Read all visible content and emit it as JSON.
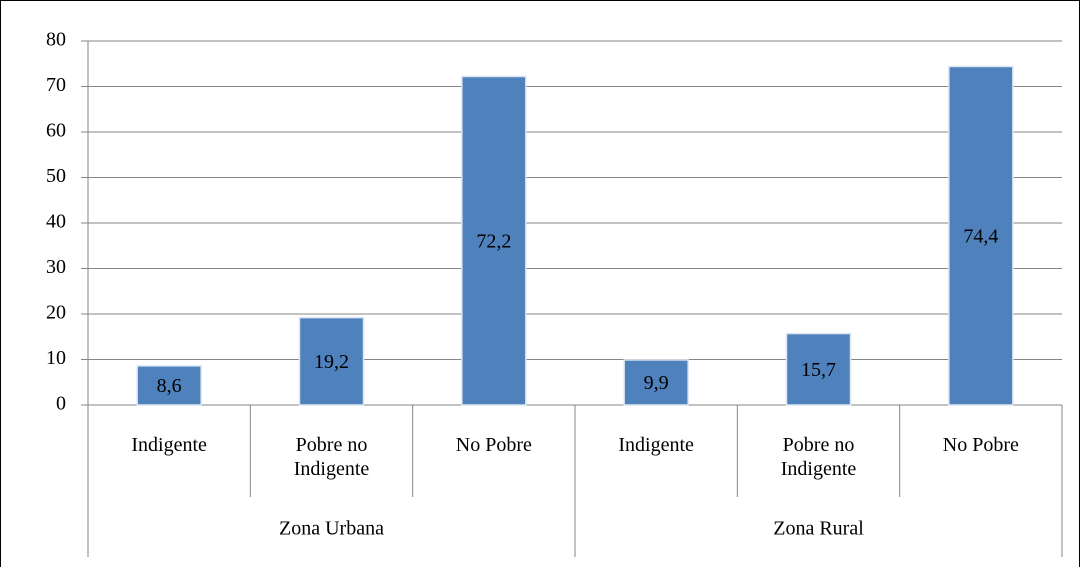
{
  "chart_data": {
    "type": "bar",
    "categories": [
      "Indigente",
      "Pobre no Indigente",
      "No Pobre",
      "Indigente",
      "Pobre no Indigente",
      "No Pobre"
    ],
    "groups": [
      "Zona Urbana",
      "Zona Rural"
    ],
    "values": [
      8.6,
      19.2,
      72.2,
      9.9,
      15.7,
      74.4
    ],
    "value_labels": [
      "8,6",
      "19,2",
      "72,2",
      "9,9",
      "15,7",
      "74,4"
    ],
    "color": "#4f81bd",
    "ylim": [
      0,
      80
    ],
    "yticks": [
      0,
      10,
      20,
      30,
      40,
      50,
      60,
      70,
      80
    ],
    "grid": true
  }
}
